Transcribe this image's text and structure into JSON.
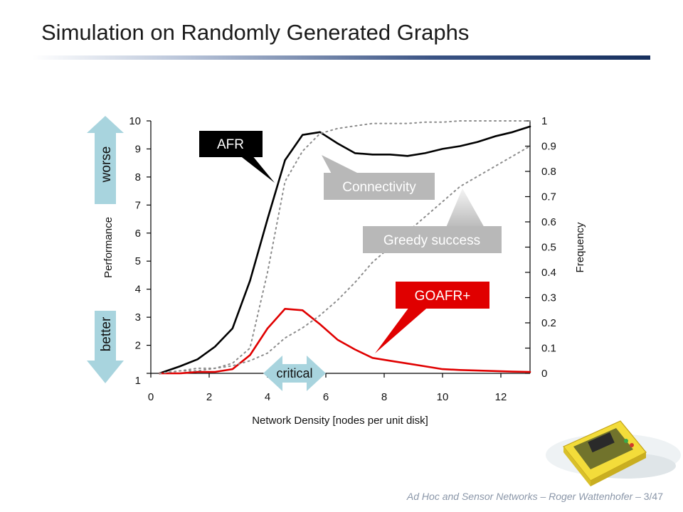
{
  "slide": {
    "title": "Simulation on Randomly Generated Graphs",
    "footer_course": "Ad Hoc and Sensor Networks",
    "footer_sep1": "–",
    "footer_author": "Roger Wattenhofer",
    "footer_sep2": "–",
    "footer_page": "3/47"
  },
  "colors": {
    "afr": "#000000",
    "goafr": "#e00000",
    "connectivity": "#8c8c8c",
    "greedy": "#8c8c8c",
    "arrow_teal": "#a8d4de",
    "callout_gray": "#b8b8b8"
  },
  "callouts": {
    "worse": "worse",
    "better": "better",
    "critical": "critical",
    "afr": "AFR",
    "goafr": "GOAFR+",
    "connectivity": "Connectivity",
    "greedy": "Greedy success"
  },
  "chart_data": {
    "type": "line",
    "xlabel": "Network Density [nodes per unit disk]",
    "ylabel_left": "Performance",
    "ylabel_right": "Frequency",
    "xlim": [
      0,
      13
    ],
    "ylim_left": [
      1,
      10
    ],
    "ylim_right": [
      0,
      1
    ],
    "x_ticks": [
      0,
      2,
      4,
      6,
      8,
      10,
      12
    ],
    "y_ticks_left": [
      1,
      2,
      3,
      4,
      5,
      6,
      7,
      8,
      9,
      10
    ],
    "y_ticks_right": [
      0,
      0.1,
      0.2,
      0.3,
      0.4,
      0.5,
      0.6,
      0.7,
      0.8,
      0.9,
      1
    ],
    "grid": false,
    "series": [
      {
        "name": "AFR",
        "axis": "left",
        "style": "solid",
        "color": "#000000",
        "x": [
          0.3,
          1,
          1.6,
          2.2,
          2.8,
          3.4,
          4,
          4.6,
          5.2,
          5.8,
          6.4,
          7,
          7.6,
          8.2,
          8.8,
          9.4,
          10,
          10.6,
          11.2,
          11.8,
          12.4,
          13
        ],
        "y": [
          1.0,
          1.25,
          1.5,
          1.95,
          2.6,
          4.3,
          6.5,
          8.6,
          9.5,
          9.6,
          9.2,
          8.85,
          8.8,
          8.8,
          8.75,
          8.85,
          9.0,
          9.1,
          9.25,
          9.45,
          9.6,
          9.8
        ]
      },
      {
        "name": "GOAFR+",
        "axis": "left",
        "style": "solid",
        "color": "#e00000",
        "x": [
          0.3,
          1,
          1.6,
          2.2,
          2.8,
          3.4,
          4,
          4.6,
          5.2,
          5.8,
          6.4,
          7,
          7.6,
          8.2,
          8.8,
          9.4,
          10,
          10.6,
          11.2,
          11.8,
          12.4,
          13
        ],
        "y": [
          1.0,
          1.0,
          1.05,
          1.05,
          1.15,
          1.65,
          2.6,
          3.3,
          3.25,
          2.75,
          2.2,
          1.85,
          1.55,
          1.45,
          1.35,
          1.25,
          1.15,
          1.12,
          1.1,
          1.08,
          1.06,
          1.05
        ]
      },
      {
        "name": "Connectivity",
        "axis": "right",
        "style": "dotted",
        "color": "#8c8c8c",
        "x": [
          0.3,
          1,
          1.6,
          2.2,
          2.8,
          3.4,
          4,
          4.6,
          5.2,
          5.8,
          6.4,
          7,
          7.6,
          8.2,
          8.8,
          9.4,
          10,
          10.6,
          11.2,
          11.8,
          12.4,
          13
        ],
        "y": [
          0.0,
          0.01,
          0.02,
          0.02,
          0.04,
          0.1,
          0.4,
          0.76,
          0.88,
          0.95,
          0.97,
          0.98,
          0.99,
          0.99,
          0.99,
          0.995,
          0.995,
          1.0,
          1.0,
          1.0,
          1.0,
          1.0
        ]
      },
      {
        "name": "Greedy success",
        "axis": "right",
        "style": "dotted",
        "color": "#8c8c8c",
        "x": [
          0.3,
          1,
          1.6,
          2.2,
          2.8,
          3.4,
          4,
          4.6,
          5.2,
          5.8,
          6.4,
          7,
          7.6,
          8.2,
          8.8,
          9.4,
          10,
          10.6,
          11.2,
          11.8,
          12.4,
          13
        ],
        "y": [
          0.0,
          0.01,
          0.01,
          0.02,
          0.03,
          0.05,
          0.08,
          0.14,
          0.18,
          0.23,
          0.29,
          0.36,
          0.44,
          0.5,
          0.56,
          0.62,
          0.68,
          0.74,
          0.78,
          0.82,
          0.86,
          0.9
        ]
      }
    ]
  }
}
